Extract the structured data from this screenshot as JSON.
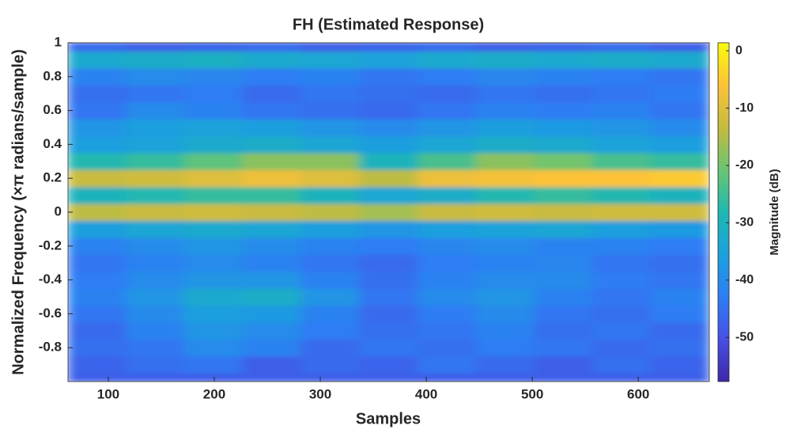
{
  "chart_data": {
    "type": "heatmap",
    "title": "FH (Estimated Response)",
    "xlabel": "Samples",
    "ylabel": "Normalized Frequency (×π radians/sample)",
    "colorbar_label": "Magnitude (dB)",
    "colormap": "parula",
    "xlim": [
      62,
      667
    ],
    "ylim": [
      -1,
      1
    ],
    "clim": [
      -57.7,
      1.4
    ],
    "xticks": [
      100,
      200,
      300,
      400,
      500,
      600
    ],
    "yticks": [
      1,
      0.8,
      0.6,
      0.4,
      0.2,
      0,
      -0.2,
      -0.4,
      -0.6,
      -0.8
    ],
    "cticks": [
      0,
      -10,
      -20,
      -30,
      -40,
      -50
    ],
    "x": [
      62,
      117,
      172,
      227,
      282,
      337,
      392,
      447,
      502,
      557,
      612,
      667
    ],
    "y": [
      -1,
      -0.95,
      -0.85,
      -0.75,
      -0.65,
      -0.55,
      -0.45,
      -0.35,
      -0.25,
      -0.15,
      -0.05,
      0.05,
      0.15,
      0.25,
      0.35,
      0.45,
      0.55,
      0.65,
      0.75,
      0.85,
      0.95,
      1
    ],
    "z": [
      [
        -48,
        -48,
        -48,
        -48,
        -48,
        -48,
        -48,
        -48,
        -48,
        -48,
        -48
      ],
      [
        -47,
        -45,
        -44,
        -48,
        -46,
        -47,
        -44,
        -46,
        -48,
        -45,
        -47
      ],
      [
        -45,
        -44,
        -40,
        -42,
        -46,
        -44,
        -45,
        -43,
        -44,
        -46,
        -45
      ],
      [
        -46,
        -42,
        -38,
        -40,
        -43,
        -45,
        -44,
        -42,
        -45,
        -44,
        -46
      ],
      [
        -44,
        -40,
        -36,
        -37,
        -42,
        -46,
        -43,
        -40,
        -44,
        -45,
        -43
      ],
      [
        -42,
        -38,
        -33,
        -32,
        -38,
        -44,
        -40,
        -38,
        -42,
        -44,
        -42
      ],
      [
        -43,
        -40,
        -38,
        -38,
        -42,
        -45,
        -42,
        -40,
        -40,
        -43,
        -44
      ],
      [
        -44,
        -42,
        -40,
        -42,
        -44,
        -46,
        -43,
        -42,
        -41,
        -44,
        -45
      ],
      [
        -42,
        -40,
        -38,
        -40,
        -42,
        -43,
        -41,
        -40,
        -42,
        -42,
        -43
      ],
      [
        -36,
        -34,
        -33,
        -34,
        -36,
        -38,
        -36,
        -35,
        -34,
        -36,
        -37
      ],
      [
        -14,
        -13,
        -12,
        -13,
        -14,
        -16,
        -13,
        -12,
        -13,
        -12,
        -12
      ],
      [
        -30,
        -28,
        -26,
        -26,
        -30,
        -34,
        -32,
        -28,
        -26,
        -28,
        -30
      ],
      [
        -13,
        -12,
        -10,
        -8,
        -10,
        -14,
        -8,
        -7,
        -6,
        -6,
        -5
      ],
      [
        -28,
        -26,
        -22,
        -18,
        -18,
        -30,
        -24,
        -18,
        -20,
        -24,
        -26
      ],
      [
        -36,
        -35,
        -33,
        -32,
        -34,
        -36,
        -34,
        -32,
        -33,
        -35,
        -36
      ],
      [
        -38,
        -36,
        -35,
        -36,
        -38,
        -40,
        -38,
        -36,
        -37,
        -38,
        -40
      ],
      [
        -44,
        -40,
        -42,
        -44,
        -45,
        -46,
        -44,
        -42,
        -43,
        -42,
        -44
      ],
      [
        -45,
        -44,
        -43,
        -46,
        -44,
        -45,
        -46,
        -44,
        -45,
        -44,
        -43
      ],
      [
        -42,
        -40,
        -41,
        -43,
        -42,
        -44,
        -43,
        -41,
        -42,
        -43,
        -44
      ],
      [
        -33,
        -32,
        -31,
        -33,
        -34,
        -35,
        -33,
        -32,
        -33,
        -32,
        -33
      ],
      [
        -46,
        -48,
        -47,
        -46,
        -48,
        -47,
        -46,
        -48,
        -47,
        -46,
        -48
      ]
    ]
  }
}
